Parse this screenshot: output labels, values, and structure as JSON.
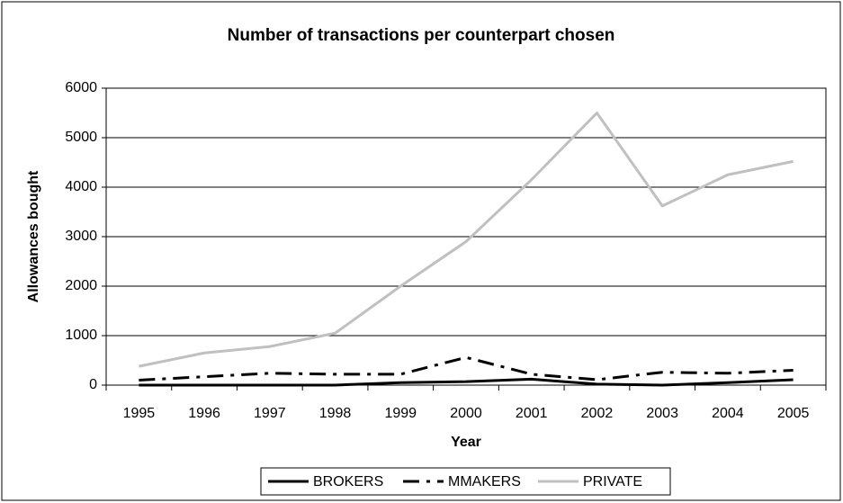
{
  "chart_data": {
    "type": "line",
    "title": "Number of transactions per counterpart chosen",
    "x_label": "Year",
    "y_label": "Allowances bought",
    "categories": [
      1995,
      1996,
      1997,
      1998,
      1999,
      2000,
      2001,
      2002,
      2003,
      2004,
      2005
    ],
    "series": [
      {
        "name": "BROKERS",
        "color": "#000000",
        "dash": "none",
        "values": [
          0,
          0,
          0,
          0,
          50,
          70,
          120,
          20,
          0,
          50,
          110
        ]
      },
      {
        "name": "MMAKERS",
        "color": "#000000",
        "dash": "18 8 4 8",
        "values": [
          100,
          170,
          240,
          220,
          220,
          560,
          220,
          110,
          260,
          240,
          300
        ]
      },
      {
        "name": "PRIVATE",
        "color": "#c0c0c0",
        "dash": "none",
        "values": [
          380,
          650,
          780,
          1050,
          2000,
          2900,
          4150,
          5500,
          3620,
          4250,
          4520
        ]
      }
    ],
    "ylim": [
      0,
      6000
    ],
    "yticks": [
      0,
      1000,
      2000,
      3000,
      4000,
      5000,
      6000
    ],
    "grid": true,
    "legend": "bottom"
  }
}
